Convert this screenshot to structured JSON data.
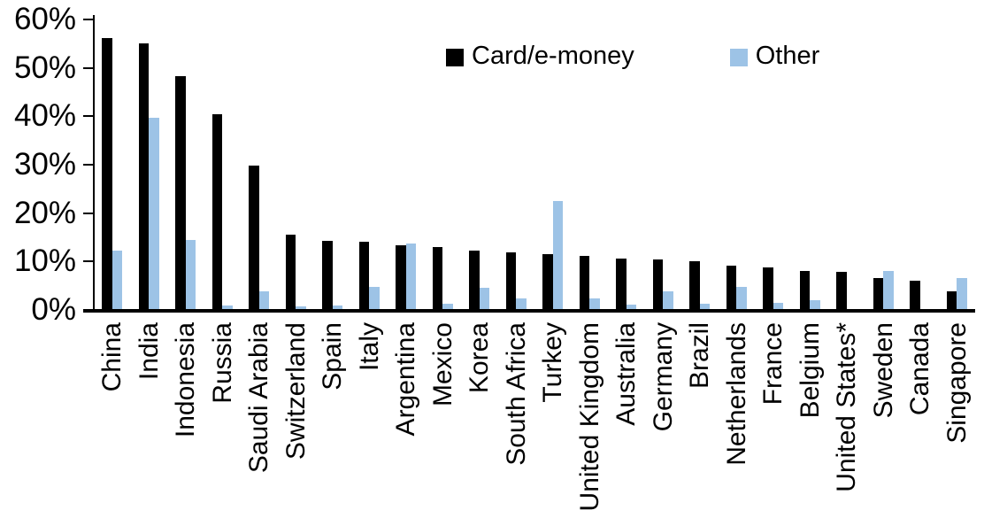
{
  "chart_data": {
    "type": "bar",
    "title": "",
    "categories": [
      "China",
      "India",
      "Indonesia",
      "Russia",
      "Saudi Arabia",
      "Switzerland",
      "Spain",
      "Italy",
      "Argentina",
      "Mexico",
      "Korea",
      "South Africa",
      "Turkey",
      "United Kingdom",
      "Australia",
      "Germany",
      "Brazil",
      "Netherlands",
      "France",
      "Belgium",
      "United States*",
      "Sweden",
      "Canada",
      "Singapore"
    ],
    "series": [
      {
        "name": "Card/e-money",
        "color": "#000000",
        "values": [
          56.2,
          55.0,
          48.3,
          40.5,
          29.9,
          15.6,
          14.2,
          14.1,
          13.4,
          12.9,
          12.2,
          11.8,
          11.6,
          11.1,
          10.7,
          10.5,
          10.0,
          9.2,
          8.7,
          8.1,
          7.9,
          6.5,
          6.0,
          3.9
        ]
      },
      {
        "name": "Other",
        "color": "#9DC3E6",
        "values": [
          12.3,
          39.7,
          14.5,
          1.0,
          3.9,
          0.8,
          1.0,
          4.7,
          13.8,
          1.3,
          4.6,
          2.4,
          22.5,
          2.3,
          1.1,
          3.9,
          1.2,
          4.8,
          1.5,
          2.0,
          0.2,
          8.1,
          0.0,
          6.6
        ]
      }
    ],
    "xlabel": "",
    "ylabel": "",
    "ylim": [
      0,
      60
    ],
    "yticks": [
      0,
      10,
      20,
      30,
      40,
      50,
      60
    ],
    "ytick_labels": [
      "0%",
      "10%",
      "20%",
      "30%",
      "40%",
      "50%",
      "60%"
    ],
    "value_unit": "percent",
    "grid": false,
    "legend_position": "top-center",
    "bar_style": "grouped-pairs"
  }
}
